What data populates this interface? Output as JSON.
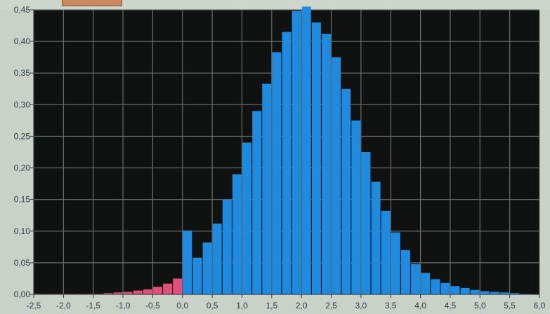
{
  "colors": {
    "plot_background": "#0f1210",
    "grid": "#6a6f6a",
    "bar_positive": "#1e8be0",
    "bar_negative": "#e0507a",
    "panel_background": "#c9d1c8",
    "tick_text": "#2b3a46"
  },
  "chart_data": {
    "type": "bar",
    "title": "",
    "xlabel": "",
    "ylabel": "",
    "xlim": [
      -2.5,
      6.0
    ],
    "ylim": [
      0,
      0.45
    ],
    "grid": true,
    "x_tick_labels": [
      "-2,5",
      "-2,0",
      "-1,5",
      "-1,0",
      "-0,5",
      "0,0",
      "0,5",
      "1,0",
      "1,5",
      "2,0",
      "2,5",
      "3,0",
      "3,5",
      "4,0",
      "4,5",
      "5,0",
      "5,5",
      "6,0"
    ],
    "y_tick_labels": [
      "0,00",
      "0,05",
      "0,10",
      "0,15",
      "0,20",
      "0,25",
      "0,30",
      "0,35",
      "0,40",
      "0,45"
    ],
    "bin_width": 0.167,
    "series": [
      {
        "color_key": "bar_negative",
        "bin_starts": [
          -2.5,
          -2.333,
          -2.167,
          -2.0,
          -1.833,
          -1.667,
          -1.5,
          -1.333,
          -1.167,
          -1.0,
          -0.833,
          -0.667,
          -0.5,
          -0.333,
          -0.167
        ],
        "values": [
          0.001,
          0.001,
          0.001,
          0.001,
          0.001,
          0.001,
          0.001,
          0.002,
          0.003,
          0.004,
          0.006,
          0.008,
          0.012,
          0.017,
          0.025
        ]
      },
      {
        "color_key": "bar_positive",
        "bin_starts": [
          0.0,
          0.167,
          0.333,
          0.5,
          0.667,
          0.833,
          1.0,
          1.167,
          1.333,
          1.5,
          1.667,
          1.833,
          2.0,
          2.167,
          2.333,
          2.5,
          2.667,
          2.833,
          3.0,
          3.167,
          3.333,
          3.5,
          3.667,
          3.833,
          4.0,
          4.167,
          4.333,
          4.5,
          4.667,
          4.833,
          5.0,
          5.167,
          5.333,
          5.5,
          5.667
        ],
        "values": [
          0.101,
          0.058,
          0.082,
          0.112,
          0.15,
          0.19,
          0.24,
          0.29,
          0.333,
          0.383,
          0.415,
          0.448,
          0.455,
          0.43,
          0.412,
          0.375,
          0.325,
          0.275,
          0.225,
          0.178,
          0.132,
          0.098,
          0.07,
          0.048,
          0.034,
          0.024,
          0.018,
          0.013,
          0.01,
          0.007,
          0.005,
          0.004,
          0.003,
          0.002,
          0.001
        ]
      }
    ]
  }
}
